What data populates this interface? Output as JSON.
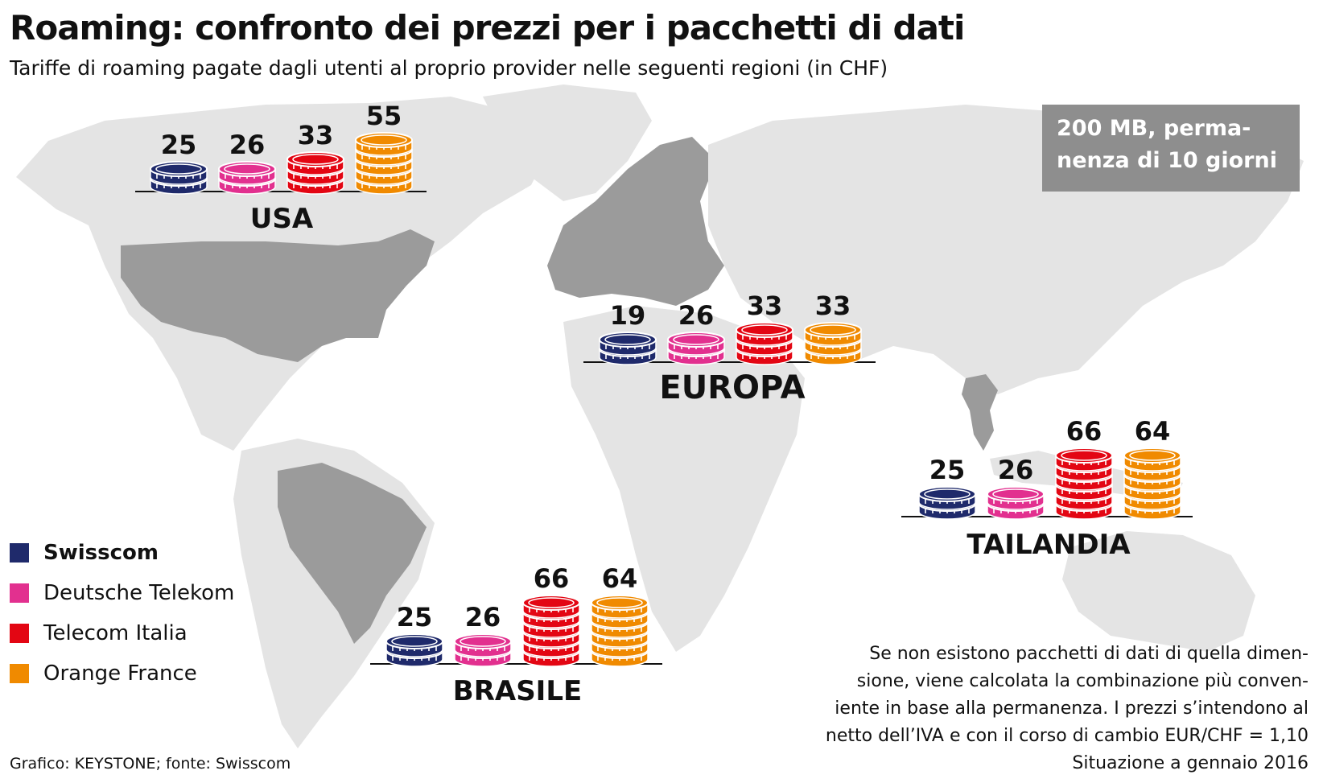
{
  "title": "Roaming: confronto dei prezzi per i pacchetti di dati",
  "subtitle": "Tariffe di roaming pagate dagli utenti al proprio provider nelle seguenti regioni (in CHF)",
  "infobox": {
    "line1": "200 MB, perma-",
    "line2": "nenza di 10 giorni"
  },
  "legend": [
    {
      "name": "Swisscom",
      "color": "#1f2a6b"
    },
    {
      "name": "Deutsche Telekom",
      "color": "#e2308f"
    },
    {
      "name": "Telecom Italia",
      "color": "#e30613"
    },
    {
      "name": "Orange France",
      "color": "#f08a00"
    }
  ],
  "note": {
    "lines": [
      "Se non esistono pacchetti di dati di quella dimen-",
      "sione, viene calcolata la combinazione più conven-",
      "iente in base alla permanenza. I prezzi s’intendono al",
      "netto dell’IVA e  con il corso di cambio EUR/CHF = 1,10",
      "Situazione a gennaio 2016"
    ]
  },
  "source": "Grafico: KEYSTONE; fonte: Swisscom",
  "chart_data": {
    "type": "bar",
    "unit": "CHF",
    "series": [
      "Swisscom",
      "Deutsche Telekom",
      "Telecom Italia",
      "Orange France"
    ],
    "regions": [
      {
        "name": "USA",
        "values": [
          25,
          26,
          33,
          55
        ]
      },
      {
        "name": "EUROPA",
        "values": [
          19,
          26,
          33,
          33
        ]
      },
      {
        "name": "TAILANDIA",
        "values": [
          25,
          26,
          66,
          64
        ]
      },
      {
        "name": "BRASILE",
        "values": [
          25,
          26,
          66,
          64
        ]
      }
    ]
  }
}
